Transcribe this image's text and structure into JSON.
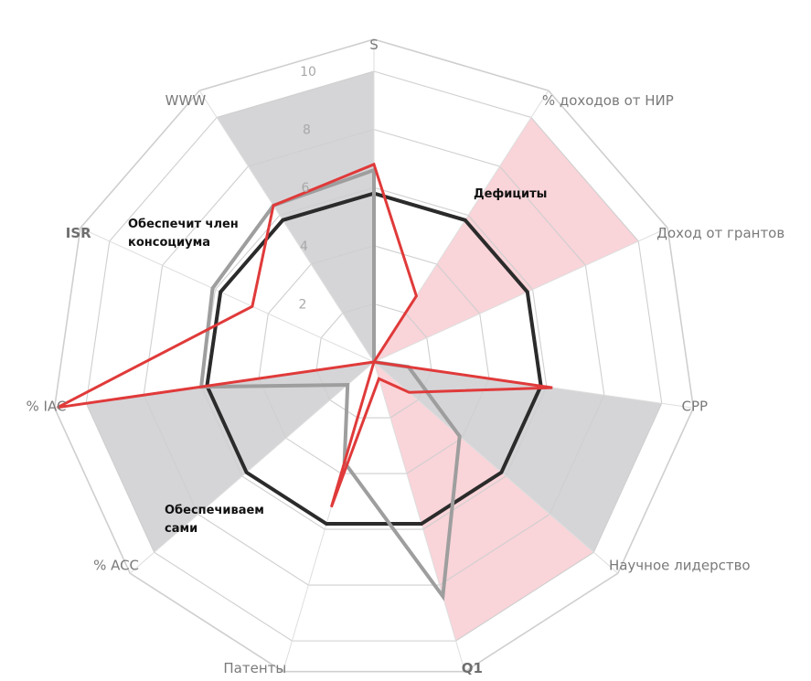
{
  "chart_data": {
    "type": "radar",
    "axes": [
      {
        "label": "S",
        "bold": false
      },
      {
        "label": "% доходов от НИР",
        "bold": false
      },
      {
        "label": "Доход от грантов",
        "bold": false
      },
      {
        "label": "CPP",
        "bold": false
      },
      {
        "label": "Научное лидерство",
        "bold": false
      },
      {
        "label": "Q1",
        "bold": true
      },
      {
        "label": "Патенты",
        "bold": false
      },
      {
        "label": "% ACC",
        "bold": false
      },
      {
        "label": "% IAC",
        "bold": false
      },
      {
        "label": "ISR",
        "bold": true
      },
      {
        "label": "WWW",
        "bold": false
      }
    ],
    "rlim": [
      0,
      10
    ],
    "ticks": [
      "2",
      "4",
      "6",
      "8",
      "10"
    ],
    "tick_values": [
      2,
      4,
      6,
      8,
      10
    ],
    "sectors": [
      {
        "axis_from": 1,
        "axis_to": 2,
        "color": "#f9d4d9"
      },
      {
        "axis_from": 3,
        "axis_to": 4,
        "color": "#d5d5d8"
      },
      {
        "axis_from": 4,
        "axis_to": 5,
        "color": "#f9d4d9"
      },
      {
        "axis_from": 7,
        "axis_to": 8,
        "color": "#d5d5d8"
      },
      {
        "axis_from": 10,
        "axis_to": 11,
        "color": "#d5d5d8"
      }
    ],
    "series": [
      {
        "color": "#2b2b2b",
        "width": 4,
        "values": [
          5.8,
          5.8,
          5.8,
          5.8,
          5.8,
          5.8,
          5.8,
          5.8,
          5.8,
          5.8,
          5.8
        ]
      },
      {
        "color": "#9e9e9e",
        "width": 4,
        "values": [
          6.6,
          0,
          0,
          1.2,
          3.9,
          8.4,
          3.6,
          1.2,
          6.0,
          6.1,
          6.4
        ]
      },
      {
        "color": "#e03a3a",
        "width": 3,
        "values": [
          6.8,
          2.7,
          0,
          6.2,
          1.6,
          0.6,
          5.2,
          0,
          11.0,
          4.6,
          6.4
        ]
      }
    ],
    "annotations": [
      {
        "text_lines": [
          "Дефициты"
        ]
      },
      {
        "text_lines": [
          "Обеспечит член",
          "консоциума"
        ]
      },
      {
        "text_lines": [
          "Обеспечиваем",
          "сами"
        ]
      }
    ]
  }
}
